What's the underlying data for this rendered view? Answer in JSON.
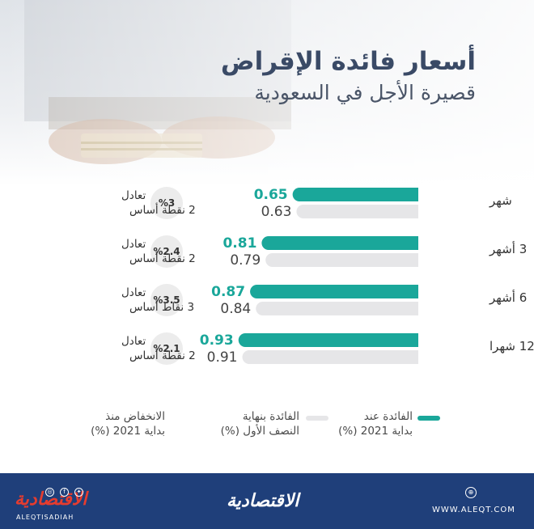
{
  "header": {
    "title": "أسعار فائدة الإقراض",
    "subtitle": "قصيرة الأجل في السعودية"
  },
  "chart_data": {
    "type": "bar",
    "orientation": "horizontal",
    "categories": [
      "شهر",
      "3 أشهر",
      "6 أشهر",
      "12 شهرا"
    ],
    "series": [
      {
        "name": "الفائدة عند بداية 2021 (%)",
        "values": [
          0.65,
          0.81,
          0.87,
          0.93
        ],
        "color": "#1aa79a"
      },
      {
        "name": "الفائدة بنهاية النصف الأول (%)",
        "values": [
          0.63,
          0.79,
          0.84,
          0.91
        ],
        "color": "#e6e6e8"
      }
    ],
    "decline_column": {
      "name": "الانخفاض منذ بداية 2021 (%)",
      "badges": [
        "%3",
        "%2.4",
        "%3.5",
        "%2.1"
      ],
      "notes": [
        [
          "تعادل",
          "2 نقطة أساس"
        ],
        [
          "تعادل",
          "2 نقطة أساس"
        ],
        [
          "تعادل",
          "3 نقاط أساس"
        ],
        [
          "تعادل",
          "2 نقطة أساس"
        ]
      ]
    },
    "xlim": [
      0,
      1.0
    ],
    "legend_position": "bottom"
  },
  "legend": {
    "item1_line1": "الفائدة عند",
    "item1_line2": "بداية 2021 (%)",
    "item2_line1": "الفائدة بنهاية",
    "item2_line2": "النصف الأول (%)",
    "item3_line1": "الانخفاض منذ",
    "item3_line2": "بداية 2021 (%)"
  },
  "footer": {
    "logo_left": "الاقتصادية",
    "logo_left_sub": "ALEQTISADIAH",
    "logo_center": "الاقتصادية",
    "site_url": "WWW.ALEQT.COM",
    "social_icons": [
      "instagram-icon",
      "facebook-icon",
      "twitter-icon"
    ],
    "site_icon": "globe-icon"
  },
  "colors": {
    "accent": "#1aa79a",
    "secondary": "#e6e6e8",
    "footer": "#1f3f7a",
    "title": "#3a4a66",
    "logo_red": "#e63c2f"
  }
}
